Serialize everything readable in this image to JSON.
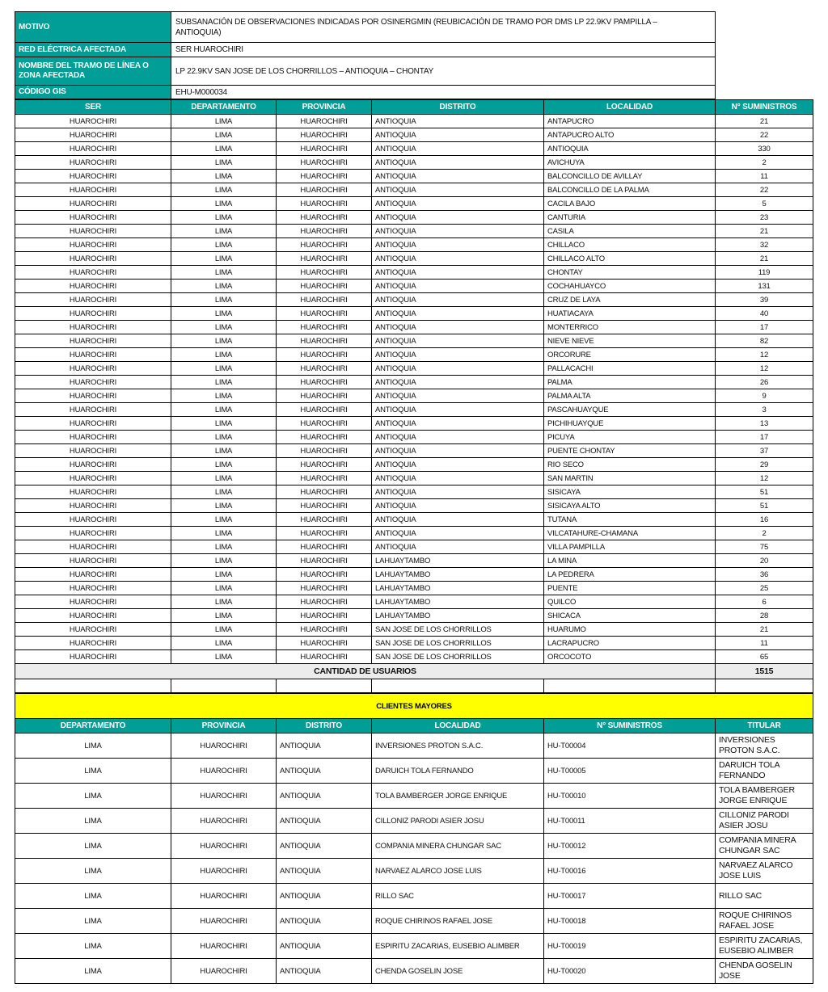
{
  "info": {
    "rows": [
      {
        "label": "MOTIVO",
        "value": "SUBSANACIÓN DE OBSERVACIONES INDICADAS POR OSINERGMIN (REUBICACIÓN DE TRAMO POR DMS LP 22.9KV PAMPILLA – ANTIOQUIA)"
      },
      {
        "label": "RED ELÉCTRICA AFECTADA",
        "value": "SER HUAROCHIRI"
      },
      {
        "label": "NOMBRE DEL TRAMO DE LÍNEA O ZONA AFECTADA",
        "value": "LP 22.9KV SAN JOSE DE LOS CHORRILLOS – ANTIOQUIA – CHONTAY"
      },
      {
        "label": "CÓDIGO GIS",
        "value": "EHU-M000034"
      }
    ]
  },
  "main_table": {
    "columns": [
      "SER",
      "DEPARTAMENTO",
      "PROVINCIA",
      "DISTRITO",
      "LOCALIDAD",
      "N° SUMINISTROS"
    ],
    "rows": [
      [
        "HUAROCHIRI",
        "LIMA",
        "HUAROCHIRI",
        "ANTIOQUIA",
        "ANTAPUCRO",
        "21"
      ],
      [
        "HUAROCHIRI",
        "LIMA",
        "HUAROCHIRI",
        "ANTIOQUIA",
        "ANTAPUCRO ALTO",
        "22"
      ],
      [
        "HUAROCHIRI",
        "LIMA",
        "HUAROCHIRI",
        "ANTIOQUIA",
        "ANTIOQUIA",
        "330"
      ],
      [
        "HUAROCHIRI",
        "LIMA",
        "HUAROCHIRI",
        "ANTIOQUIA",
        "AVICHUYA",
        "2"
      ],
      [
        "HUAROCHIRI",
        "LIMA",
        "HUAROCHIRI",
        "ANTIOQUIA",
        "BALCONCILLO DE AVILLAY",
        "11"
      ],
      [
        "HUAROCHIRI",
        "LIMA",
        "HUAROCHIRI",
        "ANTIOQUIA",
        "BALCONCILLO DE LA PALMA",
        "22"
      ],
      [
        "HUAROCHIRI",
        "LIMA",
        "HUAROCHIRI",
        "ANTIOQUIA",
        "CACILA BAJO",
        "5"
      ],
      [
        "HUAROCHIRI",
        "LIMA",
        "HUAROCHIRI",
        "ANTIOQUIA",
        "CANTURIA",
        "23"
      ],
      [
        "HUAROCHIRI",
        "LIMA",
        "HUAROCHIRI",
        "ANTIOQUIA",
        "CASILA",
        "21"
      ],
      [
        "HUAROCHIRI",
        "LIMA",
        "HUAROCHIRI",
        "ANTIOQUIA",
        "CHILLACO",
        "32"
      ],
      [
        "HUAROCHIRI",
        "LIMA",
        "HUAROCHIRI",
        "ANTIOQUIA",
        "CHILLACO ALTO",
        "21"
      ],
      [
        "HUAROCHIRI",
        "LIMA",
        "HUAROCHIRI",
        "ANTIOQUIA",
        "CHONTAY",
        "119"
      ],
      [
        "HUAROCHIRI",
        "LIMA",
        "HUAROCHIRI",
        "ANTIOQUIA",
        "COCHAHUAYCO",
        "131"
      ],
      [
        "HUAROCHIRI",
        "LIMA",
        "HUAROCHIRI",
        "ANTIOQUIA",
        "CRUZ DE LAYA",
        "39"
      ],
      [
        "HUAROCHIRI",
        "LIMA",
        "HUAROCHIRI",
        "ANTIOQUIA",
        "HUATIACAYA",
        "40"
      ],
      [
        "HUAROCHIRI",
        "LIMA",
        "HUAROCHIRI",
        "ANTIOQUIA",
        "MONTERRICO",
        "17"
      ],
      [
        "HUAROCHIRI",
        "LIMA",
        "HUAROCHIRI",
        "ANTIOQUIA",
        "NIEVE NIEVE",
        "82"
      ],
      [
        "HUAROCHIRI",
        "LIMA",
        "HUAROCHIRI",
        "ANTIOQUIA",
        "ORCORURE",
        "12"
      ],
      [
        "HUAROCHIRI",
        "LIMA",
        "HUAROCHIRI",
        "ANTIOQUIA",
        "PALLACACHI",
        "12"
      ],
      [
        "HUAROCHIRI",
        "LIMA",
        "HUAROCHIRI",
        "ANTIOQUIA",
        "PALMA",
        "26"
      ],
      [
        "HUAROCHIRI",
        "LIMA",
        "HUAROCHIRI",
        "ANTIOQUIA",
        "PALMA ALTA",
        "9"
      ],
      [
        "HUAROCHIRI",
        "LIMA",
        "HUAROCHIRI",
        "ANTIOQUIA",
        "PASCAHUAYQUE",
        "3"
      ],
      [
        "HUAROCHIRI",
        "LIMA",
        "HUAROCHIRI",
        "ANTIOQUIA",
        "PICHIHUAYQUE",
        "13"
      ],
      [
        "HUAROCHIRI",
        "LIMA",
        "HUAROCHIRI",
        "ANTIOQUIA",
        "PICUYA",
        "17"
      ],
      [
        "HUAROCHIRI",
        "LIMA",
        "HUAROCHIRI",
        "ANTIOQUIA",
        "PUENTE CHONTAY",
        "37"
      ],
      [
        "HUAROCHIRI",
        "LIMA",
        "HUAROCHIRI",
        "ANTIOQUIA",
        "RIO SECO",
        "29"
      ],
      [
        "HUAROCHIRI",
        "LIMA",
        "HUAROCHIRI",
        "ANTIOQUIA",
        "SAN MARTIN",
        "12"
      ],
      [
        "HUAROCHIRI",
        "LIMA",
        "HUAROCHIRI",
        "ANTIOQUIA",
        "SISICAYA",
        "51"
      ],
      [
        "HUAROCHIRI",
        "LIMA",
        "HUAROCHIRI",
        "ANTIOQUIA",
        "SISICAYA ALTO",
        "51"
      ],
      [
        "HUAROCHIRI",
        "LIMA",
        "HUAROCHIRI",
        "ANTIOQUIA",
        "TUTANA",
        "16"
      ],
      [
        "HUAROCHIRI",
        "LIMA",
        "HUAROCHIRI",
        "ANTIOQUIA",
        "VILCATAHURE-CHAMANA",
        "2"
      ],
      [
        "HUAROCHIRI",
        "LIMA",
        "HUAROCHIRI",
        "ANTIOQUIA",
        "VILLA PAMPILLA",
        "75"
      ],
      [
        "HUAROCHIRI",
        "LIMA",
        "HUAROCHIRI",
        "LAHUAYTAMBO",
        "LA MINA",
        "20"
      ],
      [
        "HUAROCHIRI",
        "LIMA",
        "HUAROCHIRI",
        "LAHUAYTAMBO",
        "LA PEDRERA",
        "36"
      ],
      [
        "HUAROCHIRI",
        "LIMA",
        "HUAROCHIRI",
        "LAHUAYTAMBO",
        "PUENTE",
        "25"
      ],
      [
        "HUAROCHIRI",
        "LIMA",
        "HUAROCHIRI",
        "LAHUAYTAMBO",
        "QUILCO",
        "6"
      ],
      [
        "HUAROCHIRI",
        "LIMA",
        "HUAROCHIRI",
        "LAHUAYTAMBO",
        "SHICACA",
        "28"
      ],
      [
        "HUAROCHIRI",
        "LIMA",
        "HUAROCHIRI",
        "SAN JOSE DE LOS CHORRILLOS",
        "HUARUMO",
        "21"
      ],
      [
        "HUAROCHIRI",
        "LIMA",
        "HUAROCHIRI",
        "SAN JOSE DE LOS CHORRILLOS",
        "LACRAPUCRO",
        "11"
      ],
      [
        "HUAROCHIRI",
        "LIMA",
        "HUAROCHIRI",
        "SAN JOSE DE LOS CHORRILLOS",
        "ORCOCOTO",
        "65"
      ]
    ],
    "total_label": "CANTIDAD DE USUARIOS",
    "total_value": "1515"
  },
  "clientes_mayores": {
    "title": "CLIENTES MAYORES",
    "columns": [
      "DEPARTAMENTO",
      "PROVINCIA",
      "DISTRITO",
      "LOCALIDAD",
      "N° SUMINISTROS",
      "TITULAR"
    ],
    "rows": [
      [
        "LIMA",
        "HUAROCHIRI",
        "ANTIOQUIA",
        "INVERSIONES PROTON S.A.C.",
        "HU-T00004",
        "INVERSIONES PROTON S.A.C."
      ],
      [
        "LIMA",
        "HUAROCHIRI",
        "ANTIOQUIA",
        "DARUICH TOLA FERNANDO",
        "HU-T00005",
        "DARUICH TOLA FERNANDO"
      ],
      [
        "LIMA",
        "HUAROCHIRI",
        "ANTIOQUIA",
        "TOLA BAMBERGER JORGE ENRIQUE",
        "HU-T00010",
        "TOLA BAMBERGER JORGE ENRIQUE"
      ],
      [
        "LIMA",
        "HUAROCHIRI",
        "ANTIOQUIA",
        "CILLONIZ PARODI ASIER JOSU",
        "HU-T00011",
        "CILLONIZ PARODI ASIER JOSU"
      ],
      [
        "LIMA",
        "HUAROCHIRI",
        "ANTIOQUIA",
        "COMPANIA MINERA CHUNGAR SAC",
        "HU-T00012",
        "COMPANIA MINERA CHUNGAR SAC"
      ],
      [
        "LIMA",
        "HUAROCHIRI",
        "ANTIOQUIA",
        "NARVAEZ ALARCO JOSE LUIS",
        "HU-T00016",
        "NARVAEZ ALARCO JOSE LUIS"
      ],
      [
        "LIMA",
        "HUAROCHIRI",
        "ANTIOQUIA",
        "RILLO SAC",
        "HU-T00017",
        "RILLO SAC"
      ],
      [
        "LIMA",
        "HUAROCHIRI",
        "ANTIOQUIA",
        "ROQUE CHIRINOS RAFAEL JOSE",
        "HU-T00018",
        "ROQUE CHIRINOS RAFAEL JOSE"
      ],
      [
        "LIMA",
        "HUAROCHIRI",
        "ANTIOQUIA",
        "ESPIRITU ZACARIAS, EUSEBIO ALIMBER",
        "HU-T00019",
        "ESPIRITU ZACARIAS, EUSEBIO ALIMBER"
      ],
      [
        "LIMA",
        "HUAROCHIRI",
        "ANTIOQUIA",
        "CHENDA GOSELIN JOSE",
        "HU-T00020",
        "CHENDA GOSELIN JOSE"
      ]
    ]
  },
  "colors": {
    "header_teal": "#009E96",
    "banner_yellow": "#FFFF00",
    "total_row_gray": "#ECECEC"
  }
}
